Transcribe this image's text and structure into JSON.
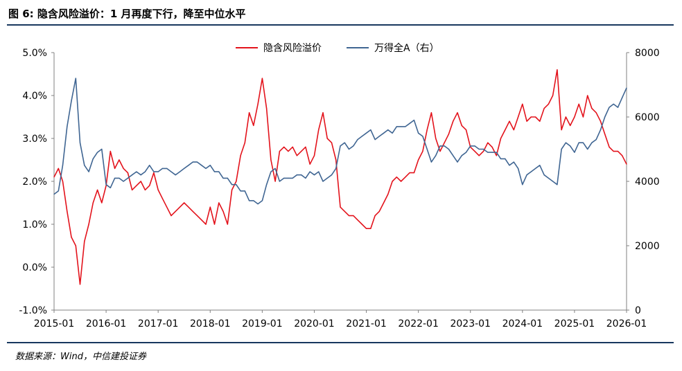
{
  "figure_title": "图 6: 隐含风险溢价：1 月再度下行，降至中位水平",
  "source_note": "数据来源：Wind，中信建投证券",
  "colors": {
    "accent_rule": "#17375e",
    "series_red": "#e3121b",
    "series_blue": "#3f6592"
  },
  "chart_data": {
    "type": "line",
    "title": "",
    "grid": false,
    "legend_position": "top-center",
    "x_tick_labels": [
      "2015-01",
      "2016-01",
      "2017-01",
      "2018-01",
      "2019-01",
      "2020-01",
      "2021-01",
      "2022-01",
      "2023-01",
      "2024-01",
      "2025-01",
      "2026-01"
    ],
    "x_range": [
      "2015-01",
      "2026-01"
    ],
    "y_left": {
      "ticks": [
        "5.0%",
        "4.0%",
        "3.0%",
        "2.0%",
        "1.0%",
        "0.0%",
        "-1.0%"
      ],
      "range": [
        -1.0,
        5.0
      ],
      "unit": "%"
    },
    "y_right": {
      "ticks": [
        "8000",
        "6000",
        "4000",
        "2000",
        "0"
      ],
      "range": [
        0,
        8000
      ]
    },
    "series": [
      {
        "name": "隐含风险溢价",
        "axis": "left",
        "color": "#e3121b",
        "points": [
          [
            "2015-01",
            2.1
          ],
          [
            "2015-02",
            2.3
          ],
          [
            "2015-03",
            2.0
          ],
          [
            "2015-04",
            1.3
          ],
          [
            "2015-05",
            0.7
          ],
          [
            "2015-06",
            0.5
          ],
          [
            "2015-07",
            -0.4
          ],
          [
            "2015-08",
            0.6
          ],
          [
            "2015-09",
            1.0
          ],
          [
            "2015-10",
            1.5
          ],
          [
            "2015-11",
            1.8
          ],
          [
            "2015-12",
            1.5
          ],
          [
            "2016-01",
            1.9
          ],
          [
            "2016-02",
            2.7
          ],
          [
            "2016-03",
            2.3
          ],
          [
            "2016-04",
            2.5
          ],
          [
            "2016-05",
            2.3
          ],
          [
            "2016-06",
            2.2
          ],
          [
            "2016-07",
            1.8
          ],
          [
            "2016-08",
            1.9
          ],
          [
            "2016-09",
            2.0
          ],
          [
            "2016-10",
            1.8
          ],
          [
            "2016-11",
            1.9
          ],
          [
            "2016-12",
            2.2
          ],
          [
            "2017-01",
            1.8
          ],
          [
            "2017-02",
            1.6
          ],
          [
            "2017-03",
            1.4
          ],
          [
            "2017-04",
            1.2
          ],
          [
            "2017-05",
            1.3
          ],
          [
            "2017-06",
            1.4
          ],
          [
            "2017-07",
            1.5
          ],
          [
            "2017-08",
            1.4
          ],
          [
            "2017-09",
            1.3
          ],
          [
            "2017-10",
            1.2
          ],
          [
            "2017-11",
            1.1
          ],
          [
            "2017-12",
            1.0
          ],
          [
            "2018-01",
            1.4
          ],
          [
            "2018-02",
            1.0
          ],
          [
            "2018-03",
            1.5
          ],
          [
            "2018-04",
            1.3
          ],
          [
            "2018-05",
            1.0
          ],
          [
            "2018-06",
            1.8
          ],
          [
            "2018-07",
            2.0
          ],
          [
            "2018-08",
            2.6
          ],
          [
            "2018-09",
            2.9
          ],
          [
            "2018-10",
            3.6
          ],
          [
            "2018-11",
            3.3
          ],
          [
            "2018-12",
            3.8
          ],
          [
            "2019-01",
            4.4
          ],
          [
            "2019-02",
            3.7
          ],
          [
            "2019-03",
            2.5
          ],
          [
            "2019-04",
            2.0
          ],
          [
            "2019-05",
            2.7
          ],
          [
            "2019-06",
            2.8
          ],
          [
            "2019-07",
            2.7
          ],
          [
            "2019-08",
            2.8
          ],
          [
            "2019-09",
            2.6
          ],
          [
            "2019-10",
            2.7
          ],
          [
            "2019-11",
            2.8
          ],
          [
            "2019-12",
            2.4
          ],
          [
            "2020-01",
            2.6
          ],
          [
            "2020-02",
            3.2
          ],
          [
            "2020-03",
            3.6
          ],
          [
            "2020-04",
            3.0
          ],
          [
            "2020-05",
            2.9
          ],
          [
            "2020-06",
            2.5
          ],
          [
            "2020-07",
            1.4
          ],
          [
            "2020-08",
            1.3
          ],
          [
            "2020-09",
            1.2
          ],
          [
            "2020-10",
            1.2
          ],
          [
            "2020-11",
            1.1
          ],
          [
            "2020-12",
            1.0
          ],
          [
            "2021-01",
            0.9
          ],
          [
            "2021-02",
            0.9
          ],
          [
            "2021-03",
            1.2
          ],
          [
            "2021-04",
            1.3
          ],
          [
            "2021-05",
            1.5
          ],
          [
            "2021-06",
            1.7
          ],
          [
            "2021-07",
            2.0
          ],
          [
            "2021-08",
            2.1
          ],
          [
            "2021-09",
            2.0
          ],
          [
            "2021-10",
            2.1
          ],
          [
            "2021-11",
            2.2
          ],
          [
            "2021-12",
            2.2
          ],
          [
            "2022-01",
            2.5
          ],
          [
            "2022-02",
            2.7
          ],
          [
            "2022-03",
            3.2
          ],
          [
            "2022-04",
            3.6
          ],
          [
            "2022-05",
            3.0
          ],
          [
            "2022-06",
            2.7
          ],
          [
            "2022-07",
            2.9
          ],
          [
            "2022-08",
            3.1
          ],
          [
            "2022-09",
            3.4
          ],
          [
            "2022-10",
            3.6
          ],
          [
            "2022-11",
            3.3
          ],
          [
            "2022-12",
            3.2
          ],
          [
            "2023-01",
            2.8
          ],
          [
            "2023-02",
            2.7
          ],
          [
            "2023-03",
            2.6
          ],
          [
            "2023-04",
            2.7
          ],
          [
            "2023-05",
            2.9
          ],
          [
            "2023-06",
            2.8
          ],
          [
            "2023-07",
            2.6
          ],
          [
            "2023-08",
            3.0
          ],
          [
            "2023-09",
            3.2
          ],
          [
            "2023-10",
            3.4
          ],
          [
            "2023-11",
            3.2
          ],
          [
            "2023-12",
            3.5
          ],
          [
            "2024-01",
            3.8
          ],
          [
            "2024-02",
            3.4
          ],
          [
            "2024-03",
            3.5
          ],
          [
            "2024-04",
            3.5
          ],
          [
            "2024-05",
            3.4
          ],
          [
            "2024-06",
            3.7
          ],
          [
            "2024-07",
            3.8
          ],
          [
            "2024-08",
            4.0
          ],
          [
            "2024-09",
            4.6
          ],
          [
            "2024-10",
            3.2
          ],
          [
            "2024-11",
            3.5
          ],
          [
            "2024-12",
            3.3
          ],
          [
            "2025-01",
            3.5
          ],
          [
            "2025-02",
            3.8
          ],
          [
            "2025-03",
            3.5
          ],
          [
            "2025-04",
            4.0
          ],
          [
            "2025-05",
            3.7
          ],
          [
            "2025-06",
            3.6
          ],
          [
            "2025-07",
            3.4
          ],
          [
            "2025-08",
            3.1
          ],
          [
            "2025-09",
            2.8
          ],
          [
            "2025-10",
            2.7
          ],
          [
            "2025-11",
            2.7
          ],
          [
            "2025-12",
            2.6
          ],
          [
            "2026-01",
            2.4
          ]
        ]
      },
      {
        "name": "万得全A（右）",
        "axis": "right",
        "color": "#3f6592",
        "points": [
          [
            "2015-01",
            3600
          ],
          [
            "2015-02",
            3700
          ],
          [
            "2015-03",
            4500
          ],
          [
            "2015-04",
            5700
          ],
          [
            "2015-05",
            6500
          ],
          [
            "2015-06",
            7200
          ],
          [
            "2015-07",
            5200
          ],
          [
            "2015-08",
            4500
          ],
          [
            "2015-09",
            4300
          ],
          [
            "2015-10",
            4700
          ],
          [
            "2015-11",
            4900
          ],
          [
            "2015-12",
            5000
          ],
          [
            "2016-01",
            3900
          ],
          [
            "2016-02",
            3800
          ],
          [
            "2016-03",
            4100
          ],
          [
            "2016-04",
            4100
          ],
          [
            "2016-05",
            4000
          ],
          [
            "2016-06",
            4100
          ],
          [
            "2016-07",
            4200
          ],
          [
            "2016-08",
            4300
          ],
          [
            "2016-09",
            4200
          ],
          [
            "2016-10",
            4300
          ],
          [
            "2016-11",
            4500
          ],
          [
            "2016-12",
            4300
          ],
          [
            "2017-01",
            4300
          ],
          [
            "2017-02",
            4400
          ],
          [
            "2017-03",
            4400
          ],
          [
            "2017-04",
            4300
          ],
          [
            "2017-05",
            4200
          ],
          [
            "2017-06",
            4300
          ],
          [
            "2017-07",
            4400
          ],
          [
            "2017-08",
            4500
          ],
          [
            "2017-09",
            4600
          ],
          [
            "2017-10",
            4600
          ],
          [
            "2017-11",
            4500
          ],
          [
            "2017-12",
            4400
          ],
          [
            "2018-01",
            4500
          ],
          [
            "2018-02",
            4300
          ],
          [
            "2018-03",
            4300
          ],
          [
            "2018-04",
            4100
          ],
          [
            "2018-05",
            4100
          ],
          [
            "2018-06",
            3900
          ],
          [
            "2018-07",
            3900
          ],
          [
            "2018-08",
            3700
          ],
          [
            "2018-09",
            3700
          ],
          [
            "2018-10",
            3400
          ],
          [
            "2018-11",
            3400
          ],
          [
            "2018-12",
            3300
          ],
          [
            "2019-01",
            3400
          ],
          [
            "2019-02",
            3900
          ],
          [
            "2019-03",
            4300
          ],
          [
            "2019-04",
            4400
          ],
          [
            "2019-05",
            4000
          ],
          [
            "2019-06",
            4100
          ],
          [
            "2019-07",
            4100
          ],
          [
            "2019-08",
            4100
          ],
          [
            "2019-09",
            4200
          ],
          [
            "2019-10",
            4200
          ],
          [
            "2019-11",
            4100
          ],
          [
            "2019-12",
            4300
          ],
          [
            "2020-01",
            4200
          ],
          [
            "2020-02",
            4300
          ],
          [
            "2020-03",
            4000
          ],
          [
            "2020-04",
            4100
          ],
          [
            "2020-05",
            4200
          ],
          [
            "2020-06",
            4400
          ],
          [
            "2020-07",
            5100
          ],
          [
            "2020-08",
            5200
          ],
          [
            "2020-09",
            5000
          ],
          [
            "2020-10",
            5100
          ],
          [
            "2020-11",
            5300
          ],
          [
            "2020-12",
            5400
          ],
          [
            "2021-01",
            5500
          ],
          [
            "2021-02",
            5600
          ],
          [
            "2021-03",
            5300
          ],
          [
            "2021-04",
            5400
          ],
          [
            "2021-05",
            5500
          ],
          [
            "2021-06",
            5600
          ],
          [
            "2021-07",
            5500
          ],
          [
            "2021-08",
            5700
          ],
          [
            "2021-09",
            5700
          ],
          [
            "2021-10",
            5700
          ],
          [
            "2021-11",
            5800
          ],
          [
            "2021-12",
            5900
          ],
          [
            "2022-01",
            5500
          ],
          [
            "2022-02",
            5400
          ],
          [
            "2022-03",
            5000
          ],
          [
            "2022-04",
            4600
          ],
          [
            "2022-05",
            4800
          ],
          [
            "2022-06",
            5100
          ],
          [
            "2022-07",
            5100
          ],
          [
            "2022-08",
            5000
          ],
          [
            "2022-09",
            4800
          ],
          [
            "2022-10",
            4600
          ],
          [
            "2022-11",
            4800
          ],
          [
            "2022-12",
            4900
          ],
          [
            "2023-01",
            5100
          ],
          [
            "2023-02",
            5100
          ],
          [
            "2023-03",
            5000
          ],
          [
            "2023-04",
            5000
          ],
          [
            "2023-05",
            4900
          ],
          [
            "2023-06",
            4900
          ],
          [
            "2023-07",
            4900
          ],
          [
            "2023-08",
            4700
          ],
          [
            "2023-09",
            4700
          ],
          [
            "2023-10",
            4500
          ],
          [
            "2023-11",
            4600
          ],
          [
            "2023-12",
            4400
          ],
          [
            "2024-01",
            3900
          ],
          [
            "2024-02",
            4200
          ],
          [
            "2024-03",
            4300
          ],
          [
            "2024-04",
            4400
          ],
          [
            "2024-05",
            4500
          ],
          [
            "2024-06",
            4200
          ],
          [
            "2024-07",
            4100
          ],
          [
            "2024-08",
            4000
          ],
          [
            "2024-09",
            3900
          ],
          [
            "2024-10",
            5000
          ],
          [
            "2024-11",
            5200
          ],
          [
            "2024-12",
            5100
          ],
          [
            "2025-01",
            4900
          ],
          [
            "2025-02",
            5200
          ],
          [
            "2025-03",
            5200
          ],
          [
            "2025-04",
            5000
          ],
          [
            "2025-05",
            5200
          ],
          [
            "2025-06",
            5300
          ],
          [
            "2025-07",
            5600
          ],
          [
            "2025-08",
            6000
          ],
          [
            "2025-09",
            6300
          ],
          [
            "2025-10",
            6400
          ],
          [
            "2025-11",
            6300
          ],
          [
            "2025-12",
            6600
          ],
          [
            "2026-01",
            6900
          ]
        ]
      }
    ]
  }
}
